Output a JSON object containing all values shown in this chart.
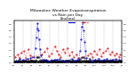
{
  "title": "Milwaukee Weather Evapotranspiration\nvs Rain per Day\n(Inches)",
  "title_fontsize": 3.2,
  "background_color": "#ffffff",
  "ylim": [
    0,
    0.65
  ],
  "xlim": [
    0,
    365
  ],
  "num_days": 365,
  "et_color": "#0000cc",
  "rain_color": "#cc0000",
  "diff_color": "#000000",
  "vline_color": "#bbbbbb",
  "vline_style": "--",
  "month_starts": [
    0,
    31,
    59,
    90,
    120,
    151,
    181,
    212,
    243,
    273,
    304,
    334
  ],
  "month_labels": [
    "1/1",
    "2/1",
    "3/1",
    "4/1",
    "5/1",
    "6/1",
    "7/1",
    "8/1",
    "9/1",
    "10/1",
    "11/1",
    "12/1",
    "1/1"
  ],
  "month_tick_positions": [
    0,
    31,
    59,
    90,
    120,
    151,
    181,
    212,
    243,
    273,
    304,
    334,
    365
  ],
  "ytick_interval": 0.1,
  "ytick_labels": [
    "0.0",
    "0.1",
    "0.2",
    "0.3",
    "0.4",
    "0.5",
    "0.6"
  ],
  "legend_et_label": "Evapotranspiration",
  "legend_rain_label": "Rain"
}
